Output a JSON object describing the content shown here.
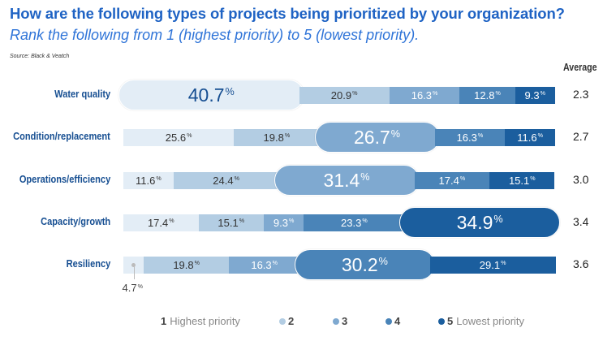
{
  "chart_data": {
    "type": "bar",
    "orientation": "horizontal-stacked-100",
    "title": "How are the following types of projects being prioritized by your organization?",
    "subtitle": "Rank the following from 1 (highest priority) to 5 (lowest priority).",
    "source": "Source: Black & Veatch",
    "average_header": "Average",
    "categories": [
      "Water quality",
      "Condition/replacement",
      "Operations/efficiency",
      "Capacity/growth",
      "Resiliency"
    ],
    "series": [
      {
        "name": "1 Highest priority",
        "rank": "1",
        "label": "Highest priority",
        "color": "#e3edf6",
        "text_color": "#333333",
        "values": [
          40.7,
          25.6,
          11.6,
          17.4,
          4.7
        ]
      },
      {
        "name": "2",
        "rank": "2",
        "label": "",
        "color": "#b3cde3",
        "text_color": "#333333",
        "values": [
          20.9,
          19.8,
          24.4,
          15.1,
          19.8
        ]
      },
      {
        "name": "3",
        "rank": "3",
        "label": "",
        "color": "#7fa9d0",
        "text_color": "#ffffff",
        "values": [
          16.3,
          26.7,
          31.4,
          9.3,
          16.3
        ]
      },
      {
        "name": "4",
        "rank": "4",
        "label": "",
        "color": "#4a84b8",
        "text_color": "#ffffff",
        "values": [
          12.8,
          16.3,
          17.4,
          23.3,
          30.2
        ]
      },
      {
        "name": "5 Lowest priority",
        "rank": "5",
        "label": "Lowest priority",
        "color": "#1b5e9e",
        "text_color": "#ffffff",
        "values": [
          9.3,
          11.6,
          15.1,
          34.9,
          29.1
        ]
      }
    ],
    "value_labels": [
      [
        "40.7",
        "20.9",
        "16.3",
        "12.8",
        "9.3"
      ],
      [
        "25.6",
        "19.8",
        "26.7",
        "16.3",
        "11.6"
      ],
      [
        "11.6",
        "24.4",
        "31.4",
        "17.4",
        "15.1"
      ],
      [
        "17.4",
        "15.1",
        "9.3",
        "23.3",
        "34.9"
      ],
      [
        "4.7",
        "19.8",
        "16.3",
        "30.2",
        "29.1"
      ]
    ],
    "highlighted_series_index": [
      0,
      2,
      2,
      4,
      3
    ],
    "averages": [
      "2.3",
      "2.7",
      "3.0",
      "3.4",
      "3.6"
    ],
    "percent_sign": "%",
    "xlim": [
      0,
      100
    ],
    "legend_position": "bottom",
    "grid": false
  }
}
